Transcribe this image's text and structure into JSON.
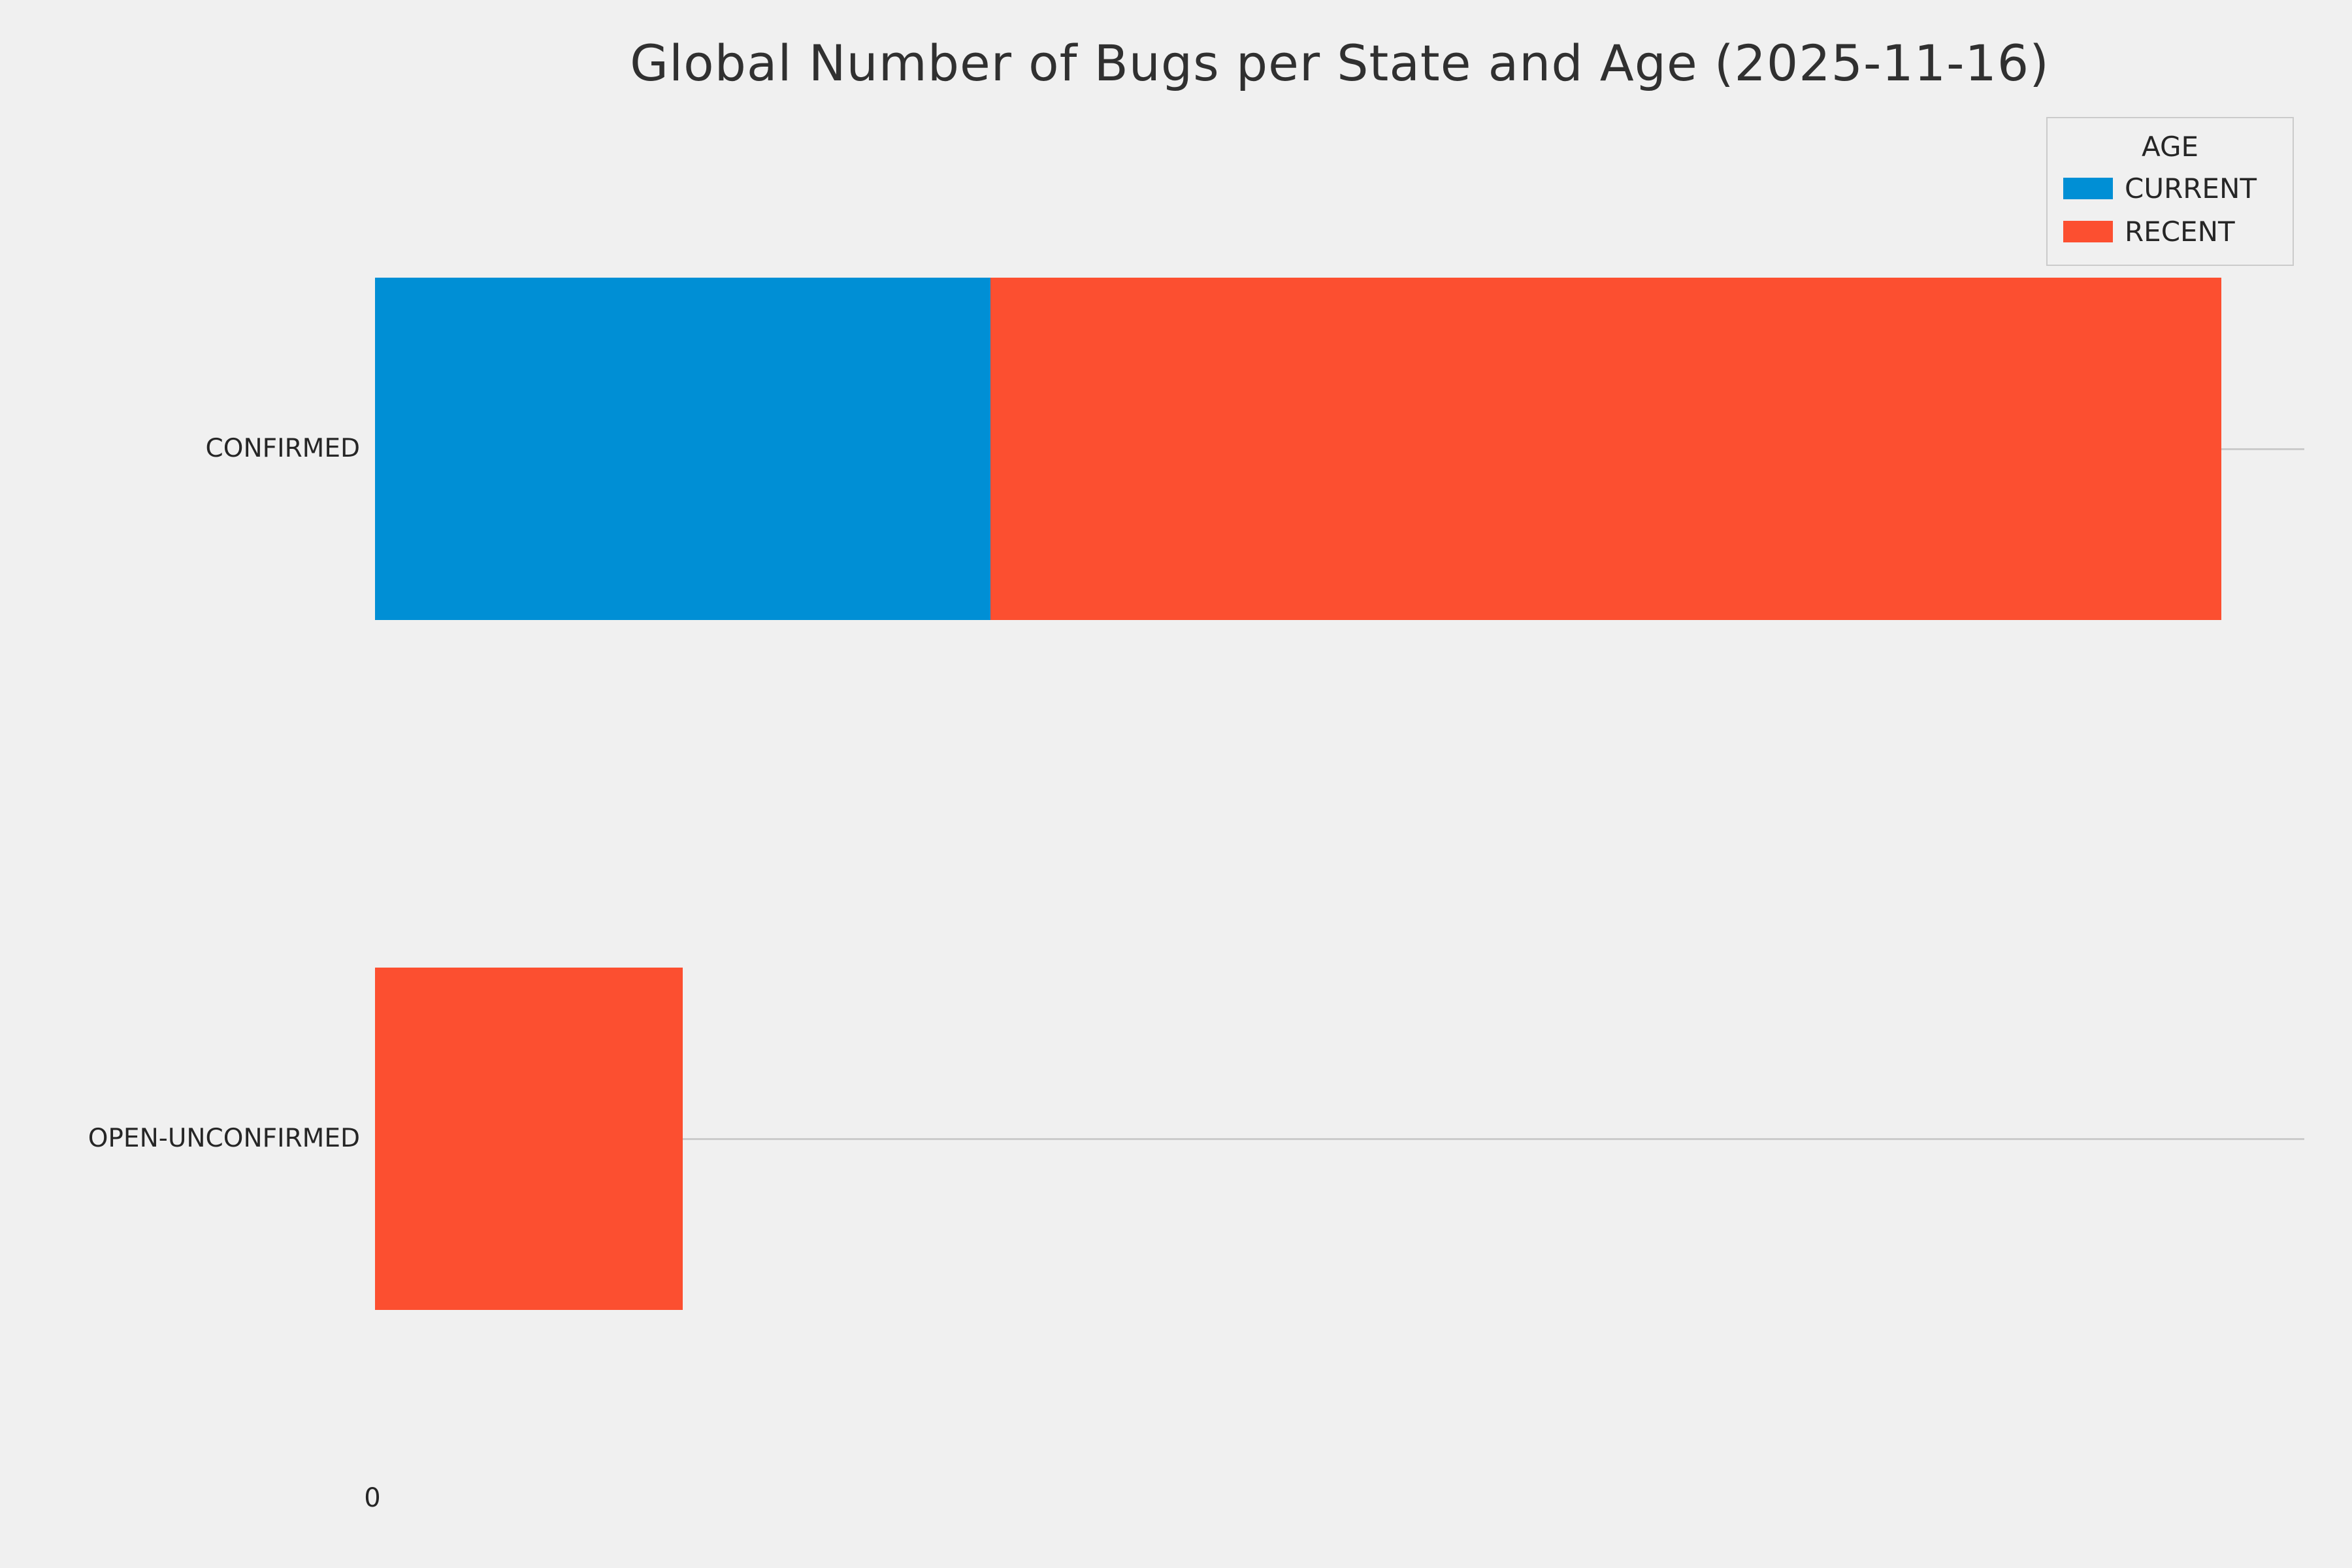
{
  "chart_data": {
    "type": "bar",
    "orientation": "horizontal",
    "stacked": true,
    "title": "Global Number of Bugs per State and Age (2025-11-16)",
    "categories": [
      "CONFIRMED",
      "OPEN-UNCONFIRMED"
    ],
    "series": [
      {
        "name": "CURRENT",
        "color": "#008fd5",
        "values": [
          2,
          0
        ]
      },
      {
        "name": "RECENT",
        "color": "#fc4f30",
        "values": [
          4,
          1
        ]
      }
    ],
    "xlim": [
      0,
      6.27
    ],
    "x_tick_labels": [
      "0"
    ],
    "legend": {
      "title": "AGE",
      "position": "upper right"
    },
    "grid": "horizontal lines at category centers",
    "colors": {
      "background": "#f0f0f0",
      "gridline": "#cbcbcb",
      "text": "#262626"
    }
  }
}
